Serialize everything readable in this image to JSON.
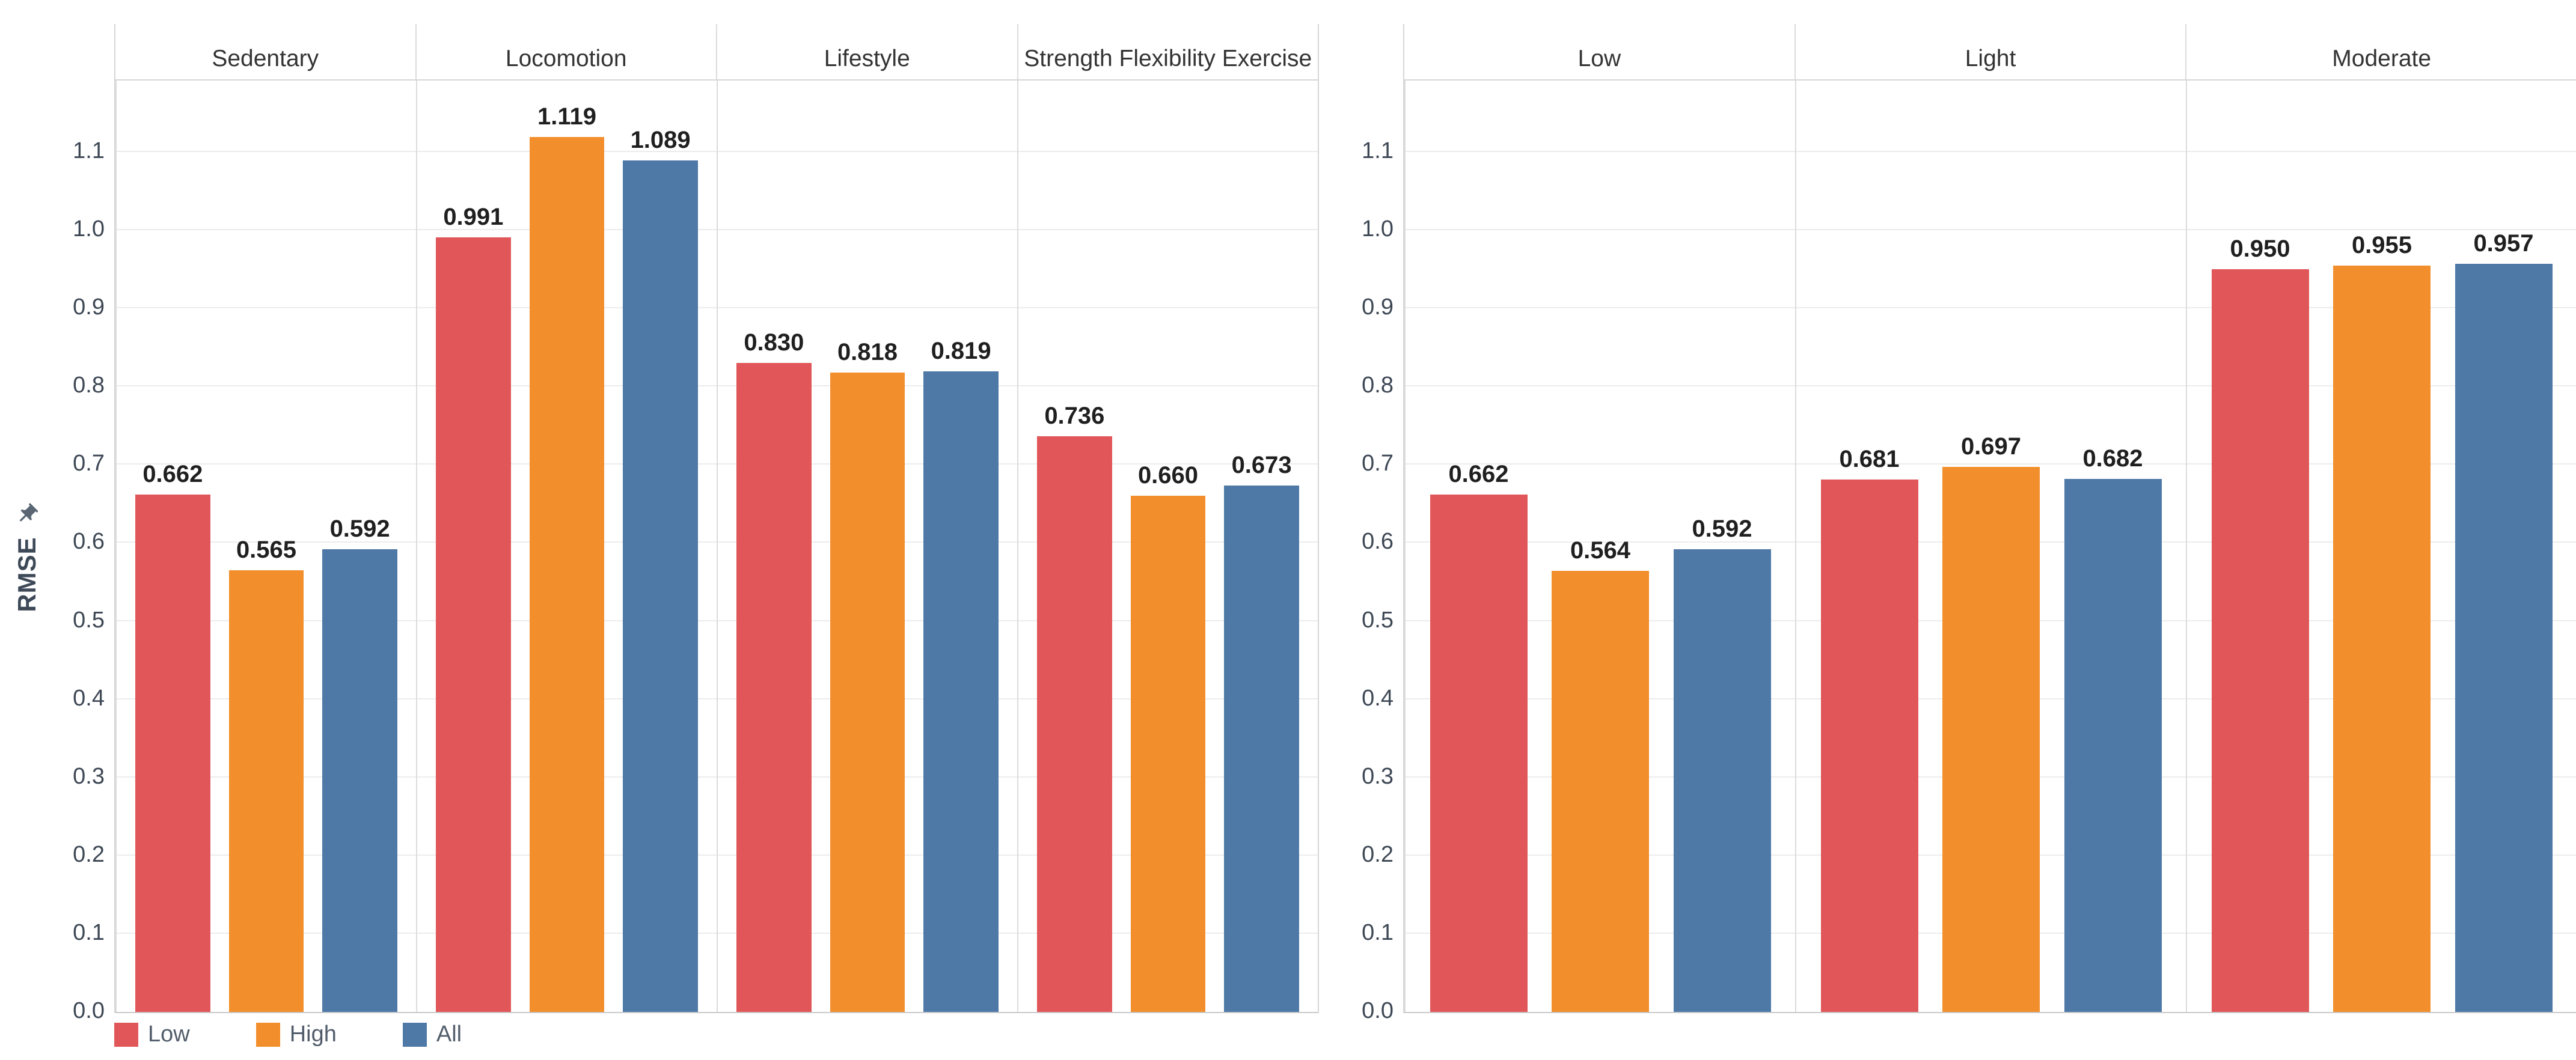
{
  "colors": {
    "low": "#E15759",
    "high": "#F28E2B",
    "all": "#4E79A7",
    "gridline": "#ECECEC",
    "axis_line": "#D6D6D6",
    "tick_text": "#3D4754",
    "header_text": "#333333",
    "value_text": "#1F1F1F",
    "legend_text": "#525D6B",
    "ylabel_text": "#3E4958",
    "pin_icon": "#5A6673"
  },
  "y_axis": {
    "label": "RMSE",
    "pin_icon": "pin-icon",
    "ticks": [
      "0.0",
      "0.1",
      "0.2",
      "0.3",
      "0.4",
      "0.5",
      "0.6",
      "0.7",
      "0.8",
      "0.9",
      "1.0",
      "1.1"
    ]
  },
  "legend": {
    "items": [
      {
        "label": "Low",
        "color_key": "low"
      },
      {
        "label": "High",
        "color_key": "high"
      },
      {
        "label": "All",
        "color_key": "all"
      }
    ]
  },
  "chart_data": [
    {
      "type": "bar",
      "title": "",
      "categories": [
        "Sedentary",
        "Locomotion",
        "Lifestyle",
        "Strength Flexibility Exercise"
      ],
      "series": [
        {
          "name": "Low",
          "color_key": "low",
          "values": [
            0.662,
            0.991,
            0.83,
            0.736
          ]
        },
        {
          "name": "High",
          "color_key": "high",
          "values": [
            0.565,
            1.119,
            0.818,
            0.66
          ]
        },
        {
          "name": "All",
          "color_key": "all",
          "values": [
            0.592,
            1.089,
            0.819,
            0.673
          ]
        }
      ],
      "xlabel": "",
      "ylabel": "RMSE",
      "ylim": [
        0,
        1.2
      ],
      "ytick_step": 0.1,
      "grid": true,
      "value_labels": "3 decimals above each bar",
      "legend_position": "bottom-left"
    },
    {
      "type": "bar",
      "title": "",
      "categories": [
        "Low",
        "Light",
        "Moderate"
      ],
      "series": [
        {
          "name": "Low",
          "color_key": "low",
          "values": [
            0.662,
            0.681,
            0.95
          ]
        },
        {
          "name": "High",
          "color_key": "high",
          "values": [
            0.564,
            0.697,
            0.955
          ]
        },
        {
          "name": "All",
          "color_key": "all",
          "values": [
            0.592,
            0.682,
            0.957
          ]
        }
      ],
      "xlabel": "",
      "ylabel": "",
      "ylim": [
        0,
        1.2
      ],
      "ytick_step": 0.1,
      "grid": true,
      "value_labels": "3 decimals above each bar",
      "legend_position": "none"
    }
  ]
}
